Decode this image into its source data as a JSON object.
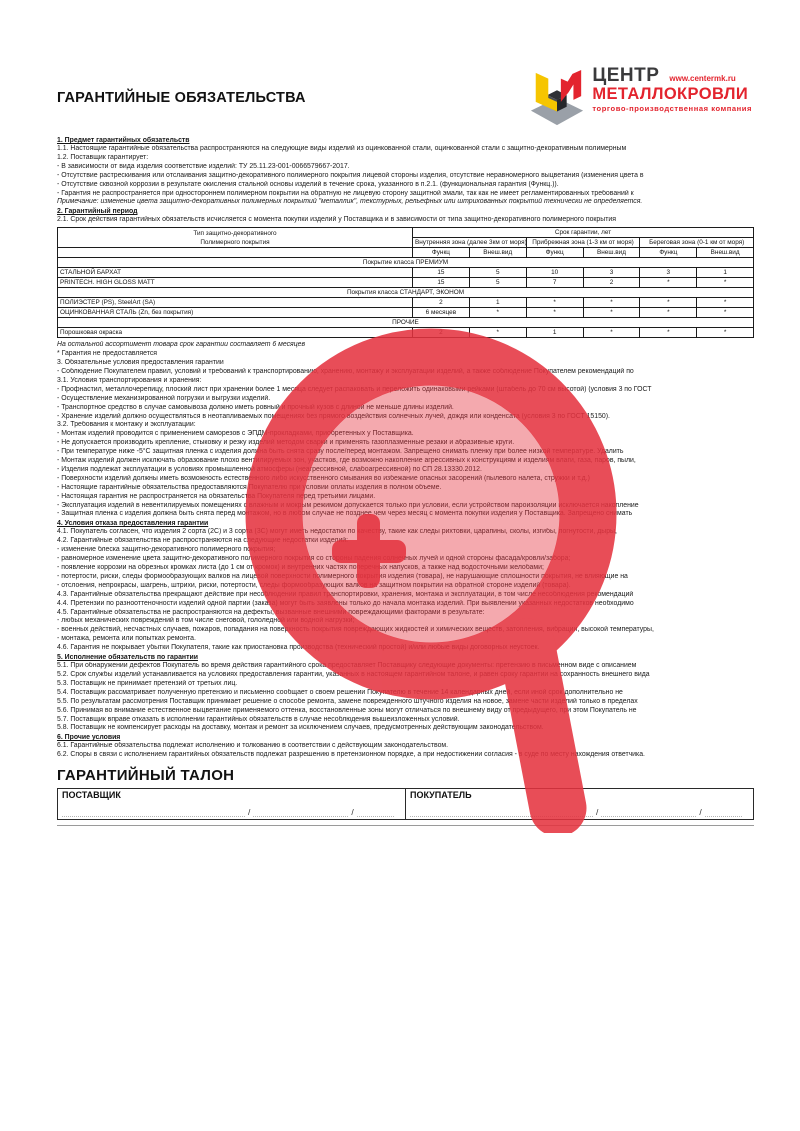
{
  "header": {
    "title": "ГАРАНТИЙНЫЕ ОБЯЗАТЕЛЬСТВА",
    "logo": {
      "center": "ЦЕНТР",
      "metal": "МЕТАЛЛОКРОВЛИ",
      "url": "www.centermk.ru",
      "tagline": "торгово-производственная компания",
      "colors": {
        "red": "#e3242e",
        "yellow": "#f6c500",
        "gray": "#9aa0a8",
        "dark": "#3a3a3c"
      }
    }
  },
  "watermark": {
    "icon": "zoom-magnifier",
    "color": "#e5333f"
  },
  "document": {
    "pre_table_sections": [
      {
        "heading": "1. Предмет гарантийных обязательств",
        "lines": [
          {
            "t": "1.1. Настоящие гарантийные обязательства распространяются на следующие виды изделий из оцинкованной стали, оцинкованной стали с защитно-декоративным полимерным"
          },
          {
            "t": "1.2. Поставщик гарантирует:"
          },
          {
            "t": "- В зависимости от вида изделия соответствие изделий: ТУ 25.11.23-001-0066579667-2017."
          },
          {
            "t": "- Отсутствие растрескивания или отслаивания защитно-декоративного полимерного покрытия лицевой стороны изделия, отсутствие неравномерного выцветания (изменения цвета в"
          },
          {
            "t": "- Отсутствие сквозной коррозии в результате окисления стальной основы изделий в течение срока, указанного в п.2.1. (функциональная гарантия (Функц.))."
          },
          {
            "t": "- Гарантия не распространяется при одностороннем полимерном покрытии на обратную не лицевую сторону защитной эмали, так как не имеет регламентированных требований к"
          },
          {
            "t": "Примечание: изменение цвета защитно-декоративных полимерных покрытий \"металлик\", текстурных, рельефных или штрихованных покрытий технически не определяется.",
            "em": true
          }
        ]
      },
      {
        "heading": "2. Гарантийный период",
        "lines": [
          {
            "t": "2.1. Срок действия гарантийных обязательств исчисляется с момента покупки изделий у Поставщика и в зависимости от типа защитно-декоративного полимерного покрытия"
          }
        ]
      }
    ],
    "post_table_sections": [
      {
        "heading": null,
        "lines": [
          {
            "t": "На остальной ассортимент товара срок гарантии составляет 6 месяцев",
            "em": true
          },
          {
            "t": "* Гарантия не предоставляется"
          }
        ]
      },
      {
        "heading": null,
        "lines": [
          {
            "t": "3. Обязательные условия предоставления гарантии"
          },
          {
            "t": "- Соблюдение Покупателем правил, условий и требований к транспортированию, хранению, монтажу и эксплуатации изделий, а также соблюдение Покупателем рекомендаций по"
          },
          {
            "t": "3.1. Условия транспортирования и хранения:"
          },
          {
            "t": "- Профнастил, металлочерепицу, плоский лист при хранении более 1 месяца следует распаковать и переложить одинаковыми рейками (штабель до 70 см высотой) (условия 3 по ГОСТ"
          },
          {
            "t": "- Осуществление механизированной погрузки и выгрузки изделий."
          },
          {
            "t": "- Транспортное средство в случае самовывоза должно иметь ровный и прочный кузов с длиной не меньше длины изделий."
          },
          {
            "t": "- Хранение изделий должно осуществляться в неотапливаемых помещениях без прямого воздействия солнечных лучей, дождя или конденсата (условия 3 по ГОСТ 15150)."
          },
          {
            "t": "3.2. Требования к монтажу и эксплуатации:"
          },
          {
            "t": "- Монтаж изделий проводится с применением саморезов с ЭПДМ-прокладками, приобретенных у Поставщика."
          },
          {
            "t": "- Не допускается производить крепление, стыковку и резку изделий методом сварки и применять газоплазменные резаки и абразивные круги."
          },
          {
            "t": "- При температуре ниже -5°С защитная пленка с изделия должна быть снята сразу после/перед монтажом. Запрещено снимать пленку при более низкой температуре. Удалить"
          },
          {
            "t": "- Монтаж изделий должен исключать образование плохо вентилируемых зон, участков, где возможно накопление агрессивных к конструкциям и изделиям влаги, газа, паров, пыли,"
          },
          {
            "t": "- Изделия подлежат эксплуатации в условиях промышленной атмосферы (неагрессивной, слабоагрессивной) по СП 28.13330.2012."
          },
          {
            "t": "- Поверхности изделий должны иметь возможность естественного либо искусственного смывания во избежание опасных засорений (пылевого налета, стружки и т.д.)"
          },
          {
            "t": "- Настоящие гарантийные обязательства предоставляются Покупателю при условии оплаты изделия в полном объеме."
          },
          {
            "t": "- Настоящая гарантия не распространяется на обязательства Покупателя перед третьими лицами."
          },
          {
            "t": "- Эксплуатация изделий в невентилируемых помещениях с влажным и мокрым режимом допускается только при условии, если устройством пароизоляции исключается накопление"
          },
          {
            "t": "- Защитная пленка с изделия должна быть снята перед монтажом, но в любом случае не позднее чем через месяц с момента покупки изделия у Поставщика. Запрещено снимать"
          }
        ]
      },
      {
        "heading": "4. Условия отказа предоставления гарантии",
        "lines": [
          {
            "t": "4.1. Покупатель согласен, что изделия 2 сорта (2С) и 3 сорта (3С) могут иметь недостатки по качеству, такие как следы рихтовки, царапины, сколы, изгибы, погнутости, дыры,"
          },
          {
            "t": "4.2. Гарантийные обязательства не распространяются на следующие недостатки изделий:"
          },
          {
            "t": "- изменение блеска защитно-декоративного полимерного покрытия;"
          },
          {
            "t": "- равномерное изменение цвета защитно-декоративного полимерного покрытия со стороны падения солнечных лучей и одной стороны фасада/кровли/забора;"
          },
          {
            "t": "- появление коррозии на обрезных кромках листа (до 1 см от кромок) и внутренних частях поперечных напусков, а также над водосточными желобами;"
          },
          {
            "t": "- потертости, риски, следы формообразующих валков на лицевой поверхности полимерного покрытия изделия (товара), не нарушающие сплошности покрытия, не влияющие на"
          },
          {
            "t": "- отслоения, непрокрасы, шагрень, штрихи, риски, потертости, следы формообразующих валков на защитном покрытии на обратной стороне изделий (товара)."
          },
          {
            "t": "4.3. Гарантийные обязательства прекращают действие при несоблюдении правил транспортировки, хранения, монтажа и эксплуатации, в том числе несоблюдения рекомендаций"
          },
          {
            "t": "4.4. Претензии по разнооттеночности изделий одной партии (заказа) могут быть заявлены только до начала монтажа изделий. При выявлении указанных недостатков необходимо"
          },
          {
            "t": "4.5. Гарантийные обязательства не распространяются на дефекты, вызванные внешними повреждающими факторами в результате:"
          },
          {
            "t": "- любых механических повреждений в том числе снеговой, гололедной или водной нагрузки;"
          },
          {
            "t": "- военных действий, несчастных случаев, пожаров, попадания на поверхность покрытия повреждающих жидкостей и химических веществ, затопления, вибрации, высокой температуры,"
          },
          {
            "t": "- монтажа, ремонта или попытках ремонта."
          },
          {
            "t": "4.6. Гарантия не покрывает убытки Покупателя, такие как приостановка производства (технический простой) и/или любые виды договорных неустоек."
          }
        ]
      },
      {
        "heading": "5. Исполнение обязательств по гарантии",
        "lines": [
          {
            "t": "5.1. При обнаружении дефектов Покупатель во время действия гарантийного срока предоставляет Поставщику следующие документы: претензию в письменном виде с описанием"
          },
          {
            "t": "5.2. Срок службы изделий устанавливается на условиях предоставления гарантии, указанных в настоящем гарантийном талоне, и равен сроку гарантии на сохранность внешнего вида"
          },
          {
            "t": "5.3. Поставщик не принимает претензий от третьих лиц."
          },
          {
            "t": "5.4. Поставщик рассматривает полученную претензию и письменно сообщает о своем решении Покупателю в течение 14 календарных дней, если иной срок дополнительно не"
          },
          {
            "t": "5.5. По результатам рассмотрения Поставщик принимает решение о способе ремонта, замене поврежденного штучного изделия на новое, замене части изделий только в пределах"
          },
          {
            "t": "5.6. Принимая во внимание естественное выцветание применяемого оттенка, восстановленные зоны могут отличаться по внешнему виду от предыдущего, при этом Покупатель не"
          },
          {
            "t": "5.7. Поставщик вправе отказать в исполнении гарантийных обязательств в случае несоблюдения вышеизложенных условий."
          },
          {
            "t": "5.8. Поставщик не компенсирует расходы на доставку, монтаж и ремонт за исключением случаев, предусмотренных действующим законодательством."
          }
        ]
      },
      {
        "heading": "6. Прочие условия",
        "lines": [
          {
            "t": "6.1. Гарантийные обязательства подлежат исполнению и толкованию в соответствии с действующим законодательством."
          },
          {
            "t": "6.2. Споры в связи с исполнением гарантийных обязательств подлежат разрешению в претензионном порядке, а при недостижении согласия - в суде по месту нахождения ответчика."
          }
        ]
      }
    ]
  },
  "table": {
    "col1_header": [
      "Тип защитно-декоративного",
      "Полимерного покрытия"
    ],
    "span_header": "Срок гарантии, лет",
    "zones": [
      "Внутренняя зона (далее 3км от моря)",
      "Прибрежная зона (1-3 км от моря)",
      "Береговая зона (0-1 км от моря)"
    ],
    "subcols": [
      "Функц",
      "Внеш.вид"
    ],
    "groups": [
      {
        "group": "Покрытие класса ПРЕМИУМ",
        "rows": [
          {
            "name": "СТАЛЬНОЙ БАРХАТ",
            "values": [
              "15",
              "5",
              "10",
              "3",
              "3",
              "1"
            ]
          },
          {
            "name": "PRINTECH. HIGH GLOSS MATT",
            "values": [
              "15",
              "5",
              "7",
              "2",
              "*",
              "*"
            ]
          }
        ]
      },
      {
        "group": "Покрытия класса СТАНДАРТ, ЭКОНОМ",
        "rows": [
          {
            "name": "ПОЛИЭСТЕР (PS),  SteelArt (SA)",
            "values": [
              "2",
              "1",
              "*",
              "*",
              "*",
              "*"
            ]
          },
          {
            "name": "ОЦИНКОВАННАЯ СТАЛЬ (Zn, без покрытия)",
            "values": [
              "6 месяцев",
              "*",
              "*",
              "*",
              "*",
              "*"
            ]
          }
        ]
      },
      {
        "group": "ПРОЧИЕ",
        "rows": [
          {
            "name": "Порошковая окраска",
            "values": [
              "2",
              "*",
              "1",
              "*",
              "*",
              "*"
            ]
          }
        ]
      }
    ]
  },
  "talon": {
    "title": "ГАРАНТИЙНЫЙ ТАЛОН",
    "supplier_label": "ПОСТАВЩИК",
    "buyer_label": "ПОКУПАТЕЛЬ",
    "separator": "/"
  }
}
